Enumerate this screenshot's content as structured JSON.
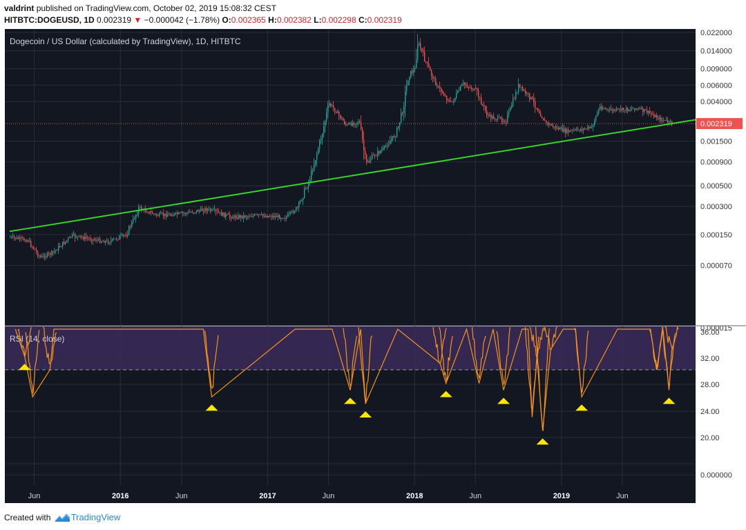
{
  "header": {
    "author": "valdrint",
    "published_text": "published on TradingView.com, October 02, 2019 15:08:32 CEST",
    "symbol": "HITBTC:DOGEUSD, 1D",
    "last": "0.002319",
    "change_arrow": "▼",
    "change": "−0.000042 (−1.78%)",
    "o_label": "O:",
    "o_value": "0.002365",
    "h_label": "H:",
    "h_value": "0.002382",
    "l_label": "L:",
    "l_value": "0.002298",
    "c_label": "C:",
    "c_value": "0.002319"
  },
  "footer": {
    "created_with": "Created with",
    "brand": "TradingView",
    "logo_icon": "tradingview-logo-icon"
  },
  "colors": {
    "background": "#131722",
    "grid": "#2a2e39",
    "candle_up": "#26a69a",
    "candle_down": "#ef5350",
    "trendline": "#37d62a",
    "rsi": "#f7931a",
    "rsi_band": "#3b2b5c",
    "marker": "#ffe600",
    "last_price_tag": "#ef5350"
  },
  "chart_data": [
    {
      "type": "candlestick",
      "title": "Dogecoin / US Dollar (calculated by TradingView), 1D, HITBTC",
      "y_scale": "log",
      "y_tick_labels": [
        "0.022000",
        "0.014000",
        "0.009000",
        "0.006000",
        "0.004000",
        "0.002319",
        "0.001500",
        "0.000900",
        "0.000500",
        "0.000300",
        "0.000150",
        "0.000070",
        "0.000015"
      ],
      "x_tick_labels": [
        "Jun",
        "2016",
        "Jun",
        "2017",
        "Jun",
        "2018",
        "Jun",
        "2019",
        "Jun"
      ],
      "last_price_label": "0.002319",
      "series": [
        {
          "x": [
            "2015-04-01",
            "2015-05-15",
            "2015-06-15",
            "2015-07-15",
            "2015-09-01",
            "2015-10-15",
            "2015-12-01",
            "2016-01-15",
            "2016-02-15",
            "2016-04-01",
            "2016-06-01",
            "2016-08-01",
            "2016-10-01",
            "2016-12-01",
            "2017-01-15",
            "2017-02-15",
            "2017-03-15",
            "2017-04-15",
            "2017-05-15",
            "2017-06-01",
            "2017-06-15",
            "2017-07-15",
            "2017-08-15",
            "2017-09-01",
            "2017-09-15",
            "2017-10-15",
            "2017-11-15",
            "2017-12-01",
            "2017-12-15",
            "2018-01-01",
            "2018-01-07",
            "2018-02-06",
            "2018-03-01",
            "2018-04-01",
            "2018-04-30",
            "2018-06-01",
            "2018-07-01",
            "2018-07-25",
            "2018-08-15",
            "2018-09-15",
            "2018-10-15",
            "2018-11-20",
            "2018-12-15",
            "2019-01-15",
            "2019-02-15",
            "2019-03-15",
            "2019-04-05",
            "2019-05-01",
            "2019-06-15",
            "2019-07-01",
            "2019-08-01",
            "2019-09-01",
            "2019-10-02"
          ],
          "y": [
            0.00014,
            0.00013,
            8.5e-05,
            9.5e-05,
            0.000145,
            0.000135,
            0.000125,
            0.00015,
            0.00029,
            0.00024,
            0.00025,
            0.00028,
            0.00023,
            0.00024,
            0.000235,
            0.00023,
            0.00029,
            0.0006,
            0.0018,
            0.0038,
            0.0033,
            0.0022,
            0.0025,
            0.00085,
            0.001,
            0.00125,
            0.0018,
            0.0032,
            0.0075,
            0.009,
            0.018,
            0.0085,
            0.0055,
            0.0038,
            0.0062,
            0.0052,
            0.0028,
            0.0026,
            0.0025,
            0.0058,
            0.0044,
            0.0024,
            0.0021,
            0.0019,
            0.002,
            0.0021,
            0.0035,
            0.0032,
            0.0033,
            0.0034,
            0.0031,
            0.0026,
            0.002319
          ]
        }
      ],
      "trendline": {
        "name": "support trendline",
        "points": [
          [
            "2015-04-01",
            0.000162
          ],
          [
            "2019-10-02",
            0.002319
          ]
        ]
      }
    },
    {
      "type": "line",
      "title": "RSI (14, close)",
      "y_tick_labels": [
        "36.00",
        "32.00",
        "28.00",
        "24.00",
        "20.00",
        "0.000000"
      ],
      "ylim": [
        0,
        36
      ],
      "threshold": 30,
      "series": [
        {
          "x": [
            "2015-04-15",
            "2015-05-08",
            "2015-05-28",
            "2015-07-10",
            "2015-07-20",
            "2015-09-10",
            "2016-05-20",
            "2016-07-25",
            "2016-08-15",
            "2017-03-10",
            "2017-06-10",
            "2017-07-25",
            "2017-08-20",
            "2017-09-01",
            "2017-11-20",
            "2018-03-05",
            "2018-03-20",
            "2018-05-10",
            "2018-06-10",
            "2018-07-15",
            "2018-08-10",
            "2018-09-25",
            "2018-10-10",
            "2018-10-20",
            "2018-11-01",
            "2018-11-15",
            "2018-12-05",
            "2019-01-05",
            "2019-02-05",
            "2019-02-20",
            "2019-05-20",
            "2019-08-10",
            "2019-08-25",
            "2019-09-10",
            "2019-09-25",
            "2019-10-02"
          ],
          "y": [
            36,
            32,
            26,
            30,
            36,
            36,
            36,
            36,
            26,
            36,
            36,
            27,
            36,
            25,
            36,
            31,
            28,
            36,
            28,
            36,
            27,
            36,
            36,
            23,
            32,
            21,
            33,
            36,
            36,
            26,
            36,
            36,
            30,
            36,
            27,
            33
          ]
        }
      ],
      "marker_dates": [
        "2015-05-08",
        "2016-08-15",
        "2017-07-25",
        "2017-09-01",
        "2018-03-20",
        "2018-08-10",
        "2018-11-15",
        "2019-02-20",
        "2019-09-25"
      ]
    }
  ]
}
